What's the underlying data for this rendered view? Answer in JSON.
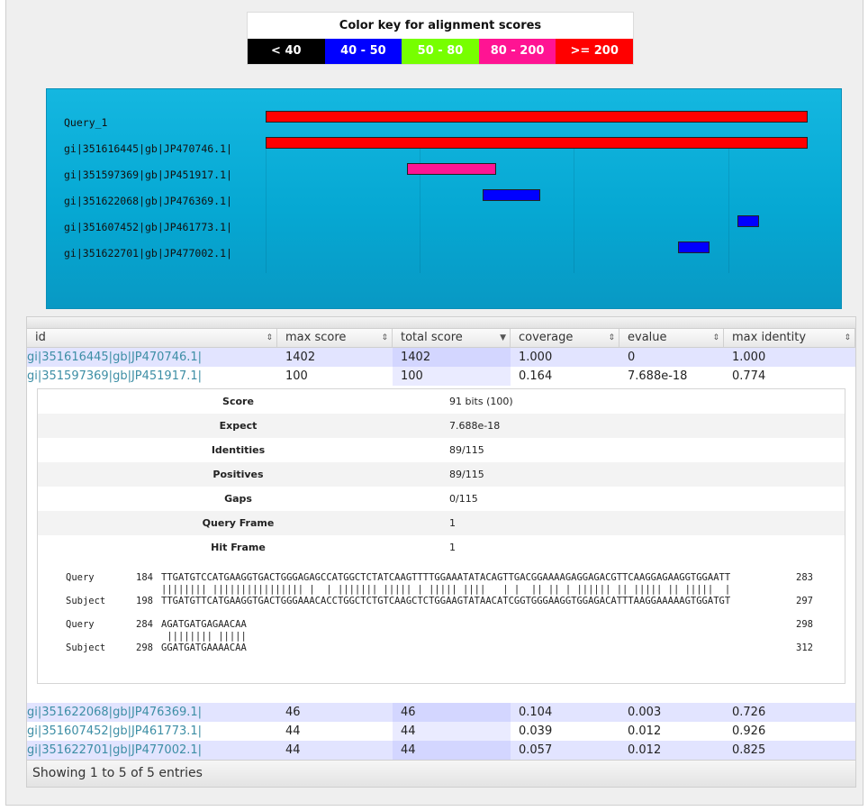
{
  "color_key": {
    "title": "Color key for alignment scores",
    "ranges": [
      {
        "label": "< 40",
        "bg": "#000000",
        "fg": "#ffffff"
      },
      {
        "label": "40 - 50",
        "bg": "#0000ff",
        "fg": "#ffffff"
      },
      {
        "label": "50 - 80",
        "bg": "#77ff00",
        "fg": "#ffffff"
      },
      {
        "label": "80 - 200",
        "bg": "#ff1493",
        "fg": "#ffffff"
      },
      {
        "label": ">= 200",
        "bg": "#ff0000",
        "fg": "#ffffff"
      }
    ]
  },
  "graphic": {
    "rows": [
      {
        "label": "Query_1",
        "start": 0.0,
        "end": 1.0,
        "color": "#ff0000"
      },
      {
        "label": "gi|351616445|gb|JP470746.1|",
        "start": 0.0,
        "end": 1.0,
        "color": "#ff0000"
      },
      {
        "label": "gi|351597369|gb|JP451917.1|",
        "start": 0.26,
        "end": 0.425,
        "color": "#ff1493"
      },
      {
        "label": "gi|351622068|gb|JP476369.1|",
        "start": 0.4,
        "end": 0.507,
        "color": "#0000ff"
      },
      {
        "label": "gi|351607452|gb|JP461773.1|",
        "start": 0.871,
        "end": 0.911,
        "color": "#0000ff"
      },
      {
        "label": "gi|351622701|gb|JP477002.1|",
        "start": 0.761,
        "end": 0.819,
        "color": "#0000ff"
      }
    ]
  },
  "table": {
    "columns": [
      "id",
      "max score",
      "total score",
      "coverage",
      "evalue",
      "max identity"
    ],
    "sort_icons": [
      "⇕",
      "⇕",
      "▼",
      "⇕",
      "⇕",
      "⇕"
    ],
    "rows_top": [
      {
        "id": "gi|351616445|gb|JP470746.1|",
        "max_score": "1402",
        "total_score": "1402",
        "coverage": "1.000",
        "evalue": "0",
        "max_identity": "1.000"
      },
      {
        "id": "gi|351597369|gb|JP451917.1|",
        "max_score": "100",
        "total_score": "100",
        "coverage": "0.164",
        "evalue": "7.688e-18",
        "max_identity": "0.774"
      }
    ],
    "rows_bottom": [
      {
        "id": "gi|351622068|gb|JP476369.1|",
        "max_score": "46",
        "total_score": "46",
        "coverage": "0.104",
        "evalue": "0.003",
        "max_identity": "0.726"
      },
      {
        "id": "gi|351607452|gb|JP461773.1|",
        "max_score": "44",
        "total_score": "44",
        "coverage": "0.039",
        "evalue": "0.012",
        "max_identity": "0.926"
      },
      {
        "id": "gi|351622701|gb|JP477002.1|",
        "max_score": "44",
        "total_score": "44",
        "coverage": "0.057",
        "evalue": "0.012",
        "max_identity": "0.825"
      }
    ],
    "footer": "Showing 1 to 5 of 5 entries"
  },
  "detail": {
    "stats": [
      {
        "label": "Score",
        "value": "91 bits (100)"
      },
      {
        "label": "Expect",
        "value": "7.688e-18"
      },
      {
        "label": "Identities",
        "value": "89/115"
      },
      {
        "label": "Positives",
        "value": "89/115"
      },
      {
        "label": "Gaps",
        "value": "0/115"
      },
      {
        "label": "Query Frame",
        "value": "1"
      },
      {
        "label": "Hit Frame",
        "value": "1"
      }
    ],
    "alignment": [
      {
        "label": "Query",
        "start": "184",
        "seq": "TTGATGTCCATGAAGGTGACTGGGAGAGCCATGGCTCTATCAAGTTTTGGAAATATACAGTTGACGGAAAAGAGGAGACGTTCAAGGAGAAGGTGGAATT",
        "end": "283"
      },
      {
        "label": "",
        "start": "",
        "seq": "|||||||| |||||||||||||||| |  | ||||||| ||||| | ||||| ||||   | |  || || | |||||| || ||||| || |||||  |",
        "end": ""
      },
      {
        "label": "Subject",
        "start": "198",
        "seq": "TTGATGTTCATGAAGGTGACTGGGAAACACCTGGCTCTGTCAAGCTCTGGAAGTATAACATCGGTGGGAAGGTGGAGACATTTAAGGAAAAAGTGGATGT",
        "end": "297"
      },
      {
        "label": "Query",
        "start": "284",
        "seq": "AGATGATGAGAACAA",
        "end": "298"
      },
      {
        "label": "",
        "start": "",
        "seq": " |||||||| |||||",
        "end": ""
      },
      {
        "label": "Subject",
        "start": "298",
        "seq": "GGATGATGAAAACAA",
        "end": "312"
      }
    ]
  }
}
